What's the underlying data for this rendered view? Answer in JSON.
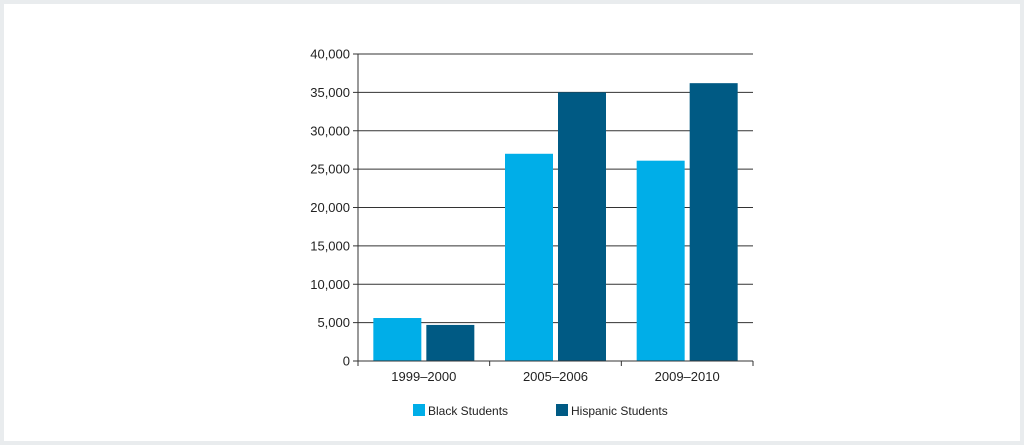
{
  "chart_data": {
    "type": "bar",
    "categories": [
      "1999–2000",
      "2005–2006",
      "2009–2010"
    ],
    "series": [
      {
        "name": "Black Students",
        "values": [
          5600,
          27000,
          26100
        ],
        "color": "#00aee8"
      },
      {
        "name": "Hispanic Students",
        "values": [
          4700,
          35000,
          36200
        ],
        "color": "#005a84"
      }
    ],
    "ylim": [
      0,
      40000
    ],
    "yticks": [
      0,
      5000,
      10000,
      15000,
      20000,
      25000,
      30000,
      35000,
      40000
    ],
    "ytick_labels": [
      "0",
      "5,000",
      "10,000",
      "15,000",
      "20,000",
      "25,000",
      "30,000",
      "35,000",
      "40,000"
    ],
    "grid": true,
    "legend_position": "bottom"
  }
}
